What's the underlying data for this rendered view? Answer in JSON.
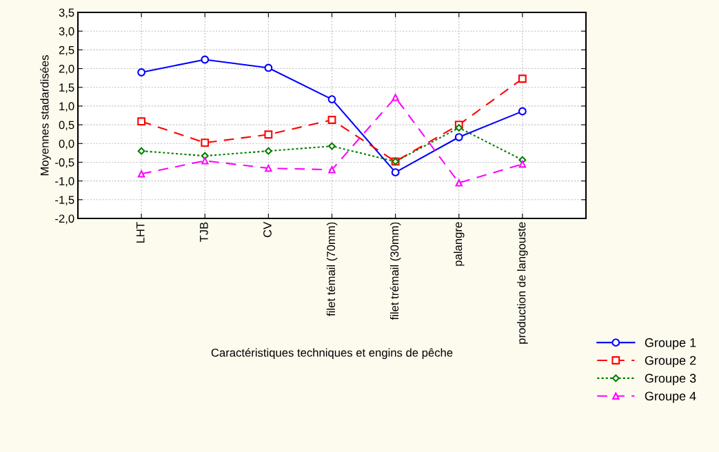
{
  "chart_data": {
    "type": "line",
    "xlabel": "Caractéristiques techniques et engins de pêche",
    "ylabel": "Moyennes stadardisées",
    "categories": [
      "LHT",
      "TJB",
      "CV",
      "filet témail (70mm)",
      "filet trémail (30mm)",
      "palangre",
      "production de langouste"
    ],
    "series": [
      {
        "name": "Groupe 1",
        "color": "#0000ff",
        "marker": "circle",
        "line_style": "solid",
        "values": [
          1.9,
          2.24,
          2.02,
          1.18,
          -0.77,
          0.17,
          0.86
        ]
      },
      {
        "name": "Groupe 2",
        "color": "#ff0000",
        "marker": "square",
        "line_style": "dashed",
        "values": [
          0.59,
          0.02,
          0.24,
          0.63,
          -0.48,
          0.5,
          1.73
        ]
      },
      {
        "name": "Groupe 3",
        "color": "#008000",
        "marker": "diamond",
        "line_style": "dotted",
        "values": [
          -0.2,
          -0.33,
          -0.2,
          -0.07,
          -0.48,
          0.42,
          -0.44
        ]
      },
      {
        "name": "Groupe 4",
        "color": "#ff00ff",
        "marker": "triangle",
        "line_style": "dashed",
        "values": [
          -0.81,
          -0.46,
          -0.66,
          -0.7,
          1.23,
          -1.05,
          -0.55
        ]
      }
    ],
    "ylim": [
      -2.0,
      3.5
    ],
    "yticks": [
      {
        "value": -2.0,
        "label": "-2,0"
      },
      {
        "value": -1.5,
        "label": "-1,5"
      },
      {
        "value": -1.0,
        "label": "-1,0"
      },
      {
        "value": -0.5,
        "label": "-0,5"
      },
      {
        "value": 0.0,
        "label": "0,0"
      },
      {
        "value": 0.5,
        "label": "0,5"
      },
      {
        "value": 1.0,
        "label": "1,0"
      },
      {
        "value": 1.5,
        "label": "1,5"
      },
      {
        "value": 2.0,
        "label": "2,0"
      },
      {
        "value": 2.5,
        "label": "2,5"
      },
      {
        "value": 3.0,
        "label": "3,0"
      },
      {
        "value": 3.5,
        "label": "3,5"
      }
    ],
    "grid": true,
    "legend": "bottom right"
  }
}
